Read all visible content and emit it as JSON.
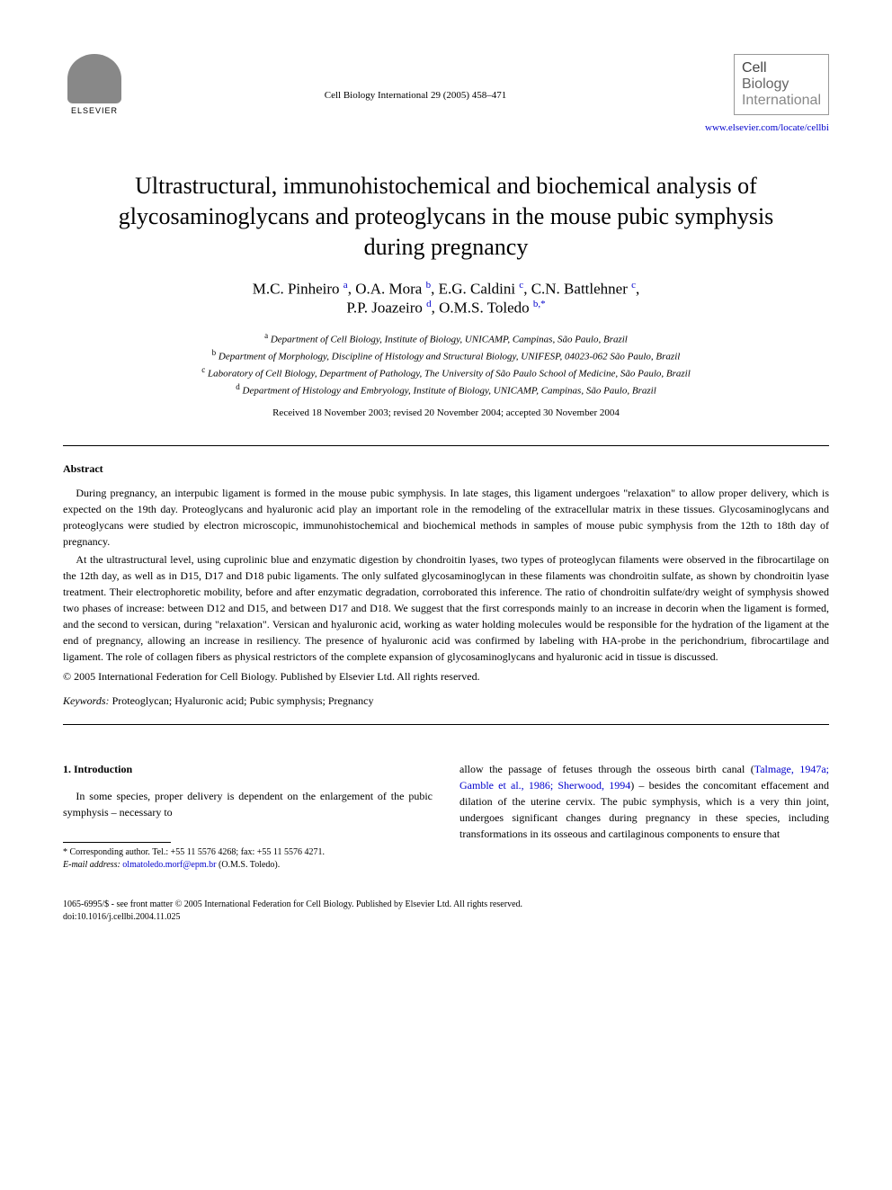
{
  "publisher": {
    "name": "ELSEVIER",
    "journal_ref": "Cell Biology International 29 (2005) 458–471",
    "journal_name_line1": "Cell",
    "journal_name_line2": "Biology",
    "journal_name_line3": "International",
    "url": "www.elsevier.com/locate/cellbi"
  },
  "title": "Ultrastructural, immunohistochemical and biochemical analysis of glycosaminoglycans and proteoglycans in the mouse pubic symphysis during pregnancy",
  "authors_line1": "M.C. Pinheiro ",
  "author_sup_a": "a",
  "authors_sep1": ", O.A. Mora ",
  "author_sup_b": "b",
  "authors_sep2": ", E.G. Caldini ",
  "author_sup_c": "c",
  "authors_sep3": ", C.N. Battlehner ",
  "author_sup_c2": "c",
  "authors_sep4": ",",
  "authors_line2_1": "P.P. Joazeiro ",
  "author_sup_d": "d",
  "authors_sep5": ", O.M.S. Toledo ",
  "author_sup_bstar": "b,*",
  "affiliations": {
    "a": "Department of Cell Biology, Institute of Biology, UNICAMP, Campinas, São Paulo, Brazil",
    "b": "Department of Morphology, Discipline of Histology and Structural Biology, UNIFESP, 04023-062 São Paulo, Brazil",
    "c": "Laboratory of Cell Biology, Department of Pathology, The University of São Paulo School of Medicine, São Paulo, Brazil",
    "d": "Department of Histology and Embryology, Institute of Biology, UNICAMP, Campinas, São Paulo, Brazil"
  },
  "dates": "Received 18 November 2003; revised 20 November 2004; accepted 30 November 2004",
  "abstract": {
    "heading": "Abstract",
    "p1": "During pregnancy, an interpubic ligament is formed in the mouse pubic symphysis. In late stages, this ligament undergoes \"relaxation\" to allow proper delivery, which is expected on the 19th day. Proteoglycans and hyaluronic acid play an important role in the remodeling of the extracellular matrix in these tissues. Glycosaminoglycans and proteoglycans were studied by electron microscopic, immunohistochemical and biochemical methods in samples of mouse pubic symphysis from the 12th to 18th day of pregnancy.",
    "p2": "At the ultrastructural level, using cuprolinic blue and enzymatic digestion by chondroitin lyases, two types of proteoglycan filaments were observed in the fibrocartilage on the 12th day, as well as in D15, D17 and D18 pubic ligaments. The only sulfated glycosaminoglycan in these filaments was chondroitin sulfate, as shown by chondroitin lyase treatment. Their electrophoretic mobility, before and after enzymatic degradation, corroborated this inference. The ratio of chondroitin sulfate/dry weight of symphysis showed two phases of increase: between D12 and D15, and between D17 and D18. We suggest that the first corresponds mainly to an increase in decorin when the ligament is formed, and the second to versican, during \"relaxation\". Versican and hyaluronic acid, working as water holding molecules would be responsible for the hydration of the ligament at the end of pregnancy, allowing an increase in resiliency. The presence of hyaluronic acid was confirmed by labeling with HA-probe in the perichondrium, fibrocartilage and ligament. The role of collagen fibers as physical restrictors of the complete expansion of glycosaminoglycans and hyaluronic acid in tissue is discussed.",
    "copyright": "© 2005 International Federation for Cell Biology. Published by Elsevier Ltd. All rights reserved."
  },
  "keywords": {
    "label": "Keywords:",
    "text": " Proteoglycan; Hyaluronic acid; Pubic symphysis; Pregnancy"
  },
  "section1": {
    "heading": "1. Introduction",
    "col1_p1": "In some species, proper delivery is dependent on the enlargement of the pubic symphysis – necessary to",
    "col2_p1_pre": "allow the passage of fetuses through the osseous birth canal (",
    "col2_p1_ref": "Talmage, 1947a; Gamble et al., 1986; Sherwood, 1994",
    "col2_p1_post": ") – besides the concomitant effacement and dilation of the uterine cervix. The pubic symphysis, which is a very thin joint, undergoes significant changes during pregnancy in these species, including transformations in its osseous and cartilaginous components to ensure that"
  },
  "footnote": {
    "corresponding": "* Corresponding author. Tel.: +55 11 5576 4268; fax: +55 11 5576 4271.",
    "email_label": "E-mail address:",
    "email": "olmatoledo.morf@epm.br",
    "email_suffix": " (O.M.S. Toledo)."
  },
  "bottom": {
    "line1": "1065-6995/$ - see front matter © 2005 International Federation for Cell Biology. Published by Elsevier Ltd. All rights reserved.",
    "line2": "doi:10.1016/j.cellbi.2004.11.025"
  },
  "colors": {
    "link": "#0000cc",
    "text": "#000000",
    "bg": "#ffffff"
  }
}
